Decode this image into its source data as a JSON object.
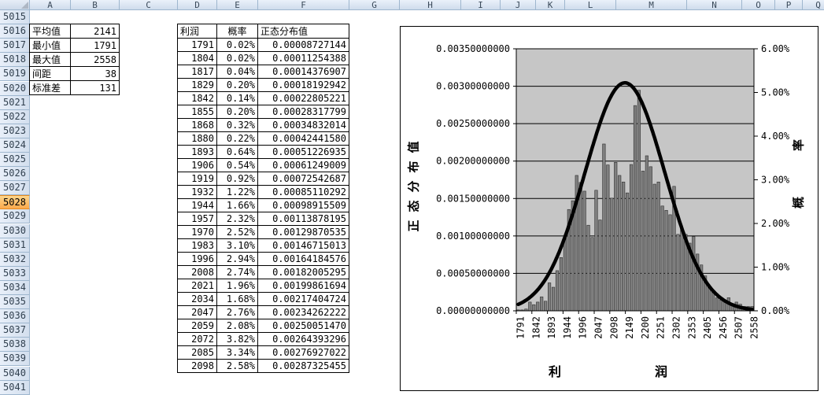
{
  "spreadsheet": {
    "column_headers": [
      "A",
      "B",
      "C",
      "D",
      "E",
      "F",
      "G",
      "H",
      "I",
      "J",
      "K",
      "L",
      "M",
      "N",
      "O",
      "P",
      "Q"
    ],
    "row_numbers": [
      "5015",
      "5016",
      "5017",
      "5018",
      "5019",
      "5020",
      "5021",
      "5022",
      "5023",
      "5024",
      "5025",
      "5026",
      "5027",
      "5028",
      "5029",
      "5030",
      "5031",
      "5032",
      "5033",
      "5034",
      "5035",
      "5036",
      "5037",
      "5038",
      "5039",
      "5040",
      "5041"
    ],
    "selected_row": "5028",
    "summary_table": {
      "rows": [
        {
          "label": "平均值",
          "value": "2141"
        },
        {
          "label": "最小值",
          "value": "1791"
        },
        {
          "label": "最大值",
          "value": "2558"
        },
        {
          "label": "间距",
          "value": "38"
        },
        {
          "label": "标准差",
          "value": "131"
        }
      ]
    },
    "data_table": {
      "headers": [
        "利润",
        "概率",
        "正态分布值"
      ],
      "rows": [
        [
          "1791",
          "0.02%",
          "0.00008727144"
        ],
        [
          "1804",
          "0.02%",
          "0.00011254388"
        ],
        [
          "1817",
          "0.04%",
          "0.00014376907"
        ],
        [
          "1829",
          "0.20%",
          "0.00018192942"
        ],
        [
          "1842",
          "0.14%",
          "0.00022805221"
        ],
        [
          "1855",
          "0.20%",
          "0.00028317799"
        ],
        [
          "1868",
          "0.32%",
          "0.00034832014"
        ],
        [
          "1880",
          "0.22%",
          "0.00042441580"
        ],
        [
          "1893",
          "0.64%",
          "0.00051226935"
        ],
        [
          "1906",
          "0.54%",
          "0.00061249009"
        ],
        [
          "1919",
          "0.92%",
          "0.00072542687"
        ],
        [
          "1932",
          "1.22%",
          "0.00085110292"
        ],
        [
          "1944",
          "1.66%",
          "0.00098915509"
        ],
        [
          "1957",
          "2.32%",
          "0.00113878195"
        ],
        [
          "1970",
          "2.52%",
          "0.00129870535"
        ],
        [
          "1983",
          "3.10%",
          "0.00146715013"
        ],
        [
          "1996",
          "2.94%",
          "0.00164184576"
        ],
        [
          "2008",
          "2.74%",
          "0.00182005295"
        ],
        [
          "2021",
          "1.96%",
          "0.00199861694"
        ],
        [
          "2034",
          "1.68%",
          "0.00217404724"
        ],
        [
          "2047",
          "2.76%",
          "0.00234262222"
        ],
        [
          "2059",
          "2.08%",
          "0.00250051470"
        ],
        [
          "2072",
          "3.82%",
          "0.00264393296"
        ],
        [
          "2085",
          "3.34%",
          "0.00276927022"
        ],
        [
          "2098",
          "2.58%",
          "0.00287325455"
        ]
      ]
    }
  },
  "chart_data": {
    "type": "bar",
    "subtype": "histogram-with-normal-curve-overlay",
    "x": [
      1791,
      1804,
      1817,
      1829,
      1842,
      1855,
      1868,
      1880,
      1893,
      1906,
      1919,
      1932,
      1944,
      1957,
      1970,
      1983,
      1996,
      2008,
      2021,
      2034,
      2047,
      2059,
      2072,
      2085,
      2098,
      2111,
      2123,
      2136,
      2149,
      2162,
      2174,
      2187,
      2200,
      2213,
      2225,
      2238,
      2251,
      2264,
      2276,
      2289,
      2302,
      2315,
      2327,
      2340,
      2353,
      2366,
      2378,
      2391,
      2405,
      2417,
      2430,
      2443,
      2456,
      2468,
      2481,
      2494,
      2507,
      2520,
      2532,
      2545,
      2558
    ],
    "bar_series": {
      "name": "概率",
      "axis": "right",
      "values_pct": [
        0.02,
        0.02,
        0.04,
        0.2,
        0.14,
        0.2,
        0.32,
        0.22,
        0.64,
        0.54,
        0.92,
        1.22,
        1.66,
        2.32,
        2.52,
        3.1,
        2.94,
        2.74,
        1.96,
        1.68,
        2.76,
        2.08,
        3.82,
        3.34,
        2.58,
        3.4,
        3.1,
        2.95,
        2.7,
        3.35,
        4.7,
        5.05,
        3.2,
        3.55,
        3.3,
        2.9,
        2.95,
        2.4,
        2.3,
        2.2,
        2.85,
        1.75,
        1.9,
        1.75,
        1.55,
        1.7,
        1.3,
        1.05,
        0.8,
        0.55,
        0.45,
        0.3,
        0.25,
        0.2,
        0.3,
        0.15,
        0.2,
        0.15,
        0.1,
        0.1,
        0.1
      ]
    },
    "curve_series": {
      "name": "正态分布值",
      "axis": "left",
      "distribution": "normal",
      "mean": 2141,
      "sd": 131
    },
    "left_axis": {
      "title": "正态分布值",
      "min": 0,
      "max": 0.0035,
      "tick_labels": [
        "0.00350000000",
        "0.00300000000",
        "0.00250000000",
        "0.00200000000",
        "0.00150000000",
        "0.00100000000",
        "0.00050000000",
        "0.00000000000"
      ]
    },
    "right_axis": {
      "title": "概率",
      "min": 0,
      "max": 6,
      "tick_labels": [
        "6.00%",
        "5.00%",
        "4.00%",
        "3.00%",
        "2.00%",
        "1.00%",
        "0.00%"
      ]
    },
    "x_axis": {
      "title": "利润",
      "label_every": 4,
      "tick_labels": [
        "1791",
        "1842",
        "1893",
        "1944",
        "1996",
        "2047",
        "2098",
        "2149",
        "2200",
        "2251",
        "2302",
        "2353",
        "2405",
        "2456",
        "2507",
        "2558"
      ]
    },
    "colors": {
      "plot_bg": "#c6c6c6",
      "bar": "#7f7f7f",
      "bar_edge": "#2e2e2e",
      "curve": "#000000",
      "grid": "#000000"
    },
    "legend": "none",
    "grid": "on"
  }
}
